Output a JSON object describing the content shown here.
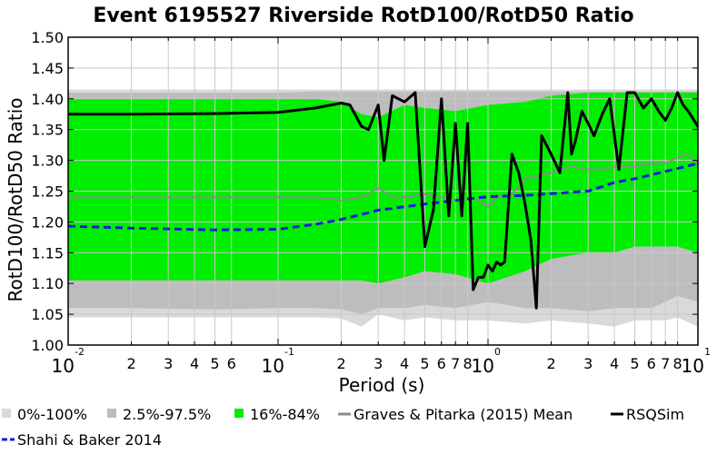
{
  "chart_data": {
    "type": "area",
    "title": "Event 6195527 Riverside RotD100/RotD50 Ratio",
    "xlabel": "Period (s)",
    "ylabel": "RotD100/RotD50 Ratio",
    "xscale": "log",
    "xlim": [
      0.01,
      10
    ],
    "ylim": [
      1.0,
      1.5
    ],
    "grid": true,
    "legend_position": "bottom",
    "x_major_ticks": [
      {
        "value": 0.01,
        "base": "10",
        "exp": "-2"
      },
      {
        "value": 0.1,
        "base": "10",
        "exp": "-1"
      },
      {
        "value": 1,
        "base": "10",
        "exp": "0"
      },
      {
        "value": 10,
        "base": "10",
        "exp": "1"
      }
    ],
    "x_minor_ticks": [
      {
        "value": 0.02,
        "label": "2"
      },
      {
        "value": 0.03,
        "label": "3"
      },
      {
        "value": 0.04,
        "label": "4"
      },
      {
        "value": 0.05,
        "label": "5"
      },
      {
        "value": 0.06,
        "label": "6"
      },
      {
        "value": 0.2,
        "label": "2"
      },
      {
        "value": 0.3,
        "label": "3"
      },
      {
        "value": 0.4,
        "label": "4"
      },
      {
        "value": 0.5,
        "label": "5"
      },
      {
        "value": 0.6,
        "label": "6"
      },
      {
        "value": 0.7,
        "label": "7"
      },
      {
        "value": 0.8,
        "label": "8"
      },
      {
        "value": 2,
        "label": "2"
      },
      {
        "value": 3,
        "label": "3"
      },
      {
        "value": 4,
        "label": "4"
      },
      {
        "value": 5,
        "label": "5"
      },
      {
        "value": 6,
        "label": "6"
      },
      {
        "value": 7,
        "label": "7"
      },
      {
        "value": 8,
        "label": "8"
      }
    ],
    "y_ticks": [
      {
        "value": 1.0,
        "label": "1.00"
      },
      {
        "value": 1.05,
        "label": "1.05"
      },
      {
        "value": 1.1,
        "label": "1.10"
      },
      {
        "value": 1.15,
        "label": "1.15"
      },
      {
        "value": 1.2,
        "label": "1.20"
      },
      {
        "value": 1.25,
        "label": "1.25"
      },
      {
        "value": 1.3,
        "label": "1.30"
      },
      {
        "value": 1.35,
        "label": "1.35"
      },
      {
        "value": 1.4,
        "label": "1.40"
      },
      {
        "value": 1.45,
        "label": "1.45"
      },
      {
        "value": 1.5,
        "label": "1.50"
      }
    ],
    "bands": [
      {
        "name": "0%-100%",
        "color": "#d9d9d9",
        "x": [
          0.01,
          0.02,
          0.05,
          0.1,
          0.15,
          0.2,
          0.25,
          0.3,
          0.4,
          0.5,
          0.7,
          1.0,
          1.5,
          2.0,
          3.0,
          4.0,
          5.0,
          6.0,
          7.0,
          8.0,
          10.0
        ],
        "upper": [
          1.415,
          1.415,
          1.415,
          1.415,
          1.415,
          1.415,
          1.415,
          1.415,
          1.415,
          1.415,
          1.415,
          1.415,
          1.415,
          1.415,
          1.415,
          1.415,
          1.415,
          1.415,
          1.415,
          1.415,
          1.415
        ],
        "lower": [
          1.045,
          1.045,
          1.045,
          1.045,
          1.045,
          1.043,
          1.03,
          1.05,
          1.04,
          1.045,
          1.04,
          1.04,
          1.035,
          1.04,
          1.035,
          1.03,
          1.04,
          1.04,
          1.04,
          1.045,
          1.03
        ]
      },
      {
        "name": "2.5%-97.5%",
        "color": "#bdbdbd",
        "x": [
          0.01,
          0.02,
          0.05,
          0.1,
          0.15,
          0.2,
          0.25,
          0.3,
          0.4,
          0.5,
          0.7,
          1.0,
          1.5,
          2.0,
          3.0,
          4.0,
          5.0,
          6.0,
          7.0,
          8.0,
          10.0
        ],
        "upper": [
          1.41,
          1.41,
          1.41,
          1.41,
          1.412,
          1.412,
          1.412,
          1.412,
          1.412,
          1.412,
          1.412,
          1.412,
          1.412,
          1.412,
          1.412,
          1.412,
          1.412,
          1.412,
          1.412,
          1.412,
          1.412
        ],
        "lower": [
          1.06,
          1.06,
          1.058,
          1.06,
          1.06,
          1.058,
          1.05,
          1.06,
          1.06,
          1.065,
          1.06,
          1.07,
          1.06,
          1.06,
          1.055,
          1.06,
          1.06,
          1.06,
          1.07,
          1.08,
          1.07
        ]
      },
      {
        "name": "16%-84%",
        "color": "#00ee00",
        "x": [
          0.01,
          0.02,
          0.05,
          0.1,
          0.15,
          0.2,
          0.25,
          0.3,
          0.4,
          0.5,
          0.7,
          1.0,
          1.5,
          2.0,
          3.0,
          4.0,
          5.0,
          6.0,
          7.0,
          8.0,
          10.0
        ],
        "upper": [
          1.4,
          1.4,
          1.4,
          1.4,
          1.4,
          1.395,
          1.375,
          1.37,
          1.39,
          1.385,
          1.38,
          1.39,
          1.395,
          1.405,
          1.41,
          1.41,
          1.41,
          1.41,
          1.41,
          1.41,
          1.41
        ],
        "lower": [
          1.105,
          1.105,
          1.105,
          1.105,
          1.105,
          1.105,
          1.105,
          1.1,
          1.11,
          1.12,
          1.115,
          1.1,
          1.12,
          1.14,
          1.15,
          1.15,
          1.16,
          1.16,
          1.16,
          1.16,
          1.15
        ]
      }
    ],
    "series": [
      {
        "name": "Graves & Pitarka (2015) Mean",
        "color": "#8c8c8c",
        "style": "solid",
        "x": [
          0.01,
          0.02,
          0.05,
          0.1,
          0.15,
          0.2,
          0.25,
          0.3,
          0.35,
          0.4,
          0.5,
          0.6,
          0.7,
          0.8,
          0.9,
          1.0,
          1.1,
          1.3,
          1.5,
          2.0,
          2.5,
          3.0,
          3.5,
          4.0,
          5.0,
          6.0,
          7.0,
          8.0,
          9.0,
          10.0
        ],
        "y": [
          1.24,
          1.24,
          1.24,
          1.24,
          1.24,
          1.235,
          1.24,
          1.255,
          1.24,
          1.24,
          1.245,
          1.24,
          1.235,
          1.24,
          1.235,
          1.225,
          1.24,
          1.245,
          1.27,
          1.28,
          1.29,
          1.285,
          1.285,
          1.29,
          1.29,
          1.295,
          1.295,
          1.305,
          1.31,
          1.295
        ]
      },
      {
        "name": "RSQSim",
        "color": "#000000",
        "style": "solid",
        "x": [
          0.01,
          0.02,
          0.05,
          0.1,
          0.15,
          0.2,
          0.22,
          0.25,
          0.27,
          0.3,
          0.32,
          0.35,
          0.4,
          0.45,
          0.5,
          0.55,
          0.6,
          0.65,
          0.7,
          0.75,
          0.8,
          0.85,
          0.9,
          0.95,
          1.0,
          1.05,
          1.1,
          1.15,
          1.2,
          1.3,
          1.4,
          1.5,
          1.6,
          1.7,
          1.8,
          2.0,
          2.2,
          2.4,
          2.5,
          2.6,
          2.8,
          3.0,
          3.2,
          3.5,
          3.8,
          4.2,
          4.6,
          5.0,
          5.5,
          6.0,
          6.5,
          7.0,
          7.5,
          8.0,
          8.5,
          9.0,
          10.0
        ],
        "y": [
          1.375,
          1.375,
          1.376,
          1.378,
          1.385,
          1.393,
          1.39,
          1.355,
          1.35,
          1.39,
          1.3,
          1.405,
          1.395,
          1.41,
          1.16,
          1.22,
          1.4,
          1.21,
          1.36,
          1.21,
          1.36,
          1.09,
          1.11,
          1.11,
          1.13,
          1.12,
          1.135,
          1.13,
          1.135,
          1.31,
          1.28,
          1.23,
          1.17,
          1.06,
          1.34,
          1.31,
          1.28,
          1.41,
          1.31,
          1.33,
          1.38,
          1.36,
          1.34,
          1.375,
          1.4,
          1.285,
          1.41,
          1.41,
          1.385,
          1.4,
          1.38,
          1.365,
          1.385,
          1.41,
          1.39,
          1.38,
          1.355
        ]
      },
      {
        "name": "Shahi & Baker 2014",
        "color": "#1a1adb",
        "style": "dashed",
        "x": [
          0.01,
          0.02,
          0.05,
          0.1,
          0.15,
          0.2,
          0.3,
          0.5,
          0.7,
          1.0,
          1.5,
          2.0,
          3.0,
          4.0,
          5.0,
          7.0,
          10.0
        ],
        "y": [
          1.193,
          1.19,
          1.187,
          1.188,
          1.196,
          1.204,
          1.219,
          1.229,
          1.235,
          1.241,
          1.243,
          1.246,
          1.25,
          1.264,
          1.27,
          1.282,
          1.295
        ]
      }
    ],
    "legend": [
      {
        "label": "0%-100%",
        "kind": "box",
        "color": "#d9d9d9"
      },
      {
        "label": "2.5%-97.5%",
        "kind": "box",
        "color": "#bdbdbd"
      },
      {
        "label": "16%-84%",
        "kind": "box",
        "color": "#00ee00"
      },
      {
        "label": "Graves & Pitarka (2015) Mean",
        "kind": "line",
        "color": "#8c8c8c",
        "style": "solid"
      },
      {
        "label": "RSQSim",
        "kind": "line",
        "color": "#000000",
        "style": "solid"
      },
      {
        "label": "Shahi & Baker 2014",
        "kind": "line",
        "color": "#1a1adb",
        "style": "dashed"
      }
    ]
  }
}
